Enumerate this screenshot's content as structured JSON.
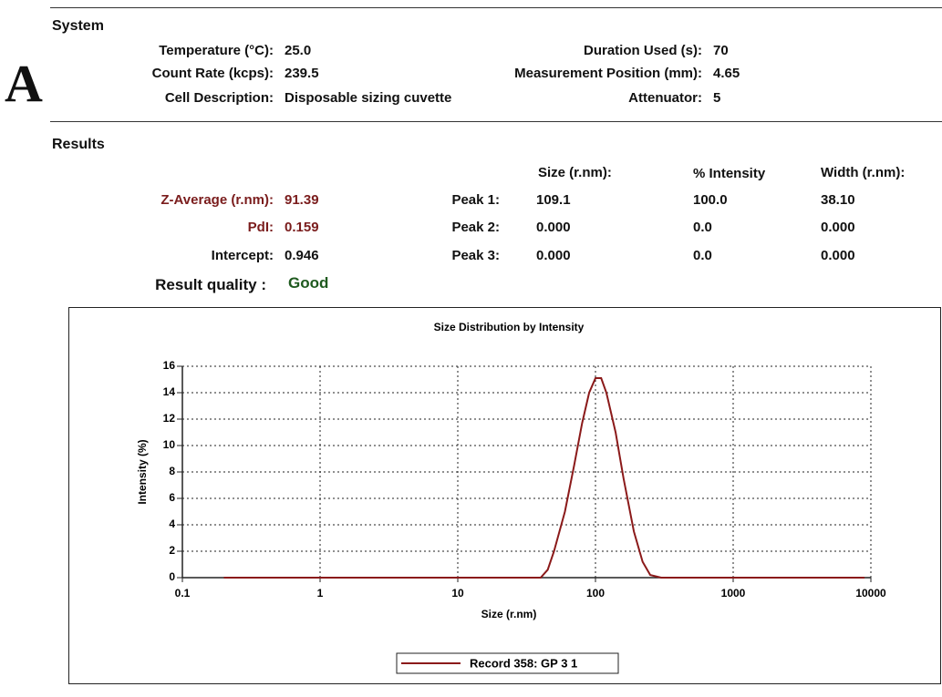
{
  "letter": "A",
  "system": {
    "title": "System",
    "left": [
      {
        "label": "Temperature (°C):",
        "value": "25.0"
      },
      {
        "label": "Count Rate (kcps):",
        "value": "239.5"
      },
      {
        "label": "Cell Description:",
        "value": "Disposable sizing cuvette"
      }
    ],
    "right": [
      {
        "label": "Duration Used (s):",
        "value": "70"
      },
      {
        "label": "Measurement Position (mm):",
        "value": "4.65"
      },
      {
        "label": "Attenuator:",
        "value": "5"
      }
    ]
  },
  "results": {
    "title": "Results",
    "left": [
      {
        "label": "Z-Average (r.nm):",
        "value": "91.39"
      },
      {
        "label": "PdI:",
        "value": "0.159"
      },
      {
        "label": "Intercept:",
        "value": "0.946"
      }
    ],
    "quality": {
      "label": "Result quality :",
      "value": "Good"
    },
    "peaks": {
      "headers": [
        "Size (r.nm):",
        "% Intensity",
        "Width (r.nm):"
      ],
      "rows": [
        [
          "Peak 1:",
          "109.1",
          "100.0",
          "38.10"
        ],
        [
          "Peak 2:",
          "0.000",
          "0.0",
          "0.000"
        ],
        [
          "Peak 3:",
          "0.000",
          "0.0",
          "0.000"
        ]
      ]
    }
  },
  "chart_data": {
    "type": "line",
    "title": "Size Distribution by Intensity",
    "x_label": "Size (r.nm)",
    "y_label": "Intensity (%)",
    "log_x": true,
    "grid": true,
    "xlim": [
      0.1,
      10000
    ],
    "xticks": [
      0.1,
      1,
      10,
      100,
      1000,
      10000
    ],
    "ylim": [
      0,
      16
    ],
    "yticks": [
      0,
      2,
      4,
      6,
      8,
      10,
      12,
      14,
      16
    ],
    "x": [
      0.2,
      0.3,
      0.5,
      0.7,
      1,
      2,
      3,
      5,
      7,
      10,
      20,
      30,
      40,
      45,
      50,
      60,
      70,
      80,
      90,
      100,
      110,
      120,
      140,
      160,
      190,
      220,
      250,
      300,
      500,
      1000,
      2000,
      5000,
      9000
    ],
    "series": [
      {
        "name": "Record 358: GP 3 1",
        "color": "#8b1a1a",
        "values": [
          0,
          0,
          0,
          0,
          0,
          0,
          0,
          0,
          0,
          0,
          0,
          0,
          0,
          0.6,
          2,
          5,
          8.5,
          11.7,
          14,
          15.1,
          15.1,
          14,
          11,
          7.5,
          3.5,
          1.2,
          0.2,
          0,
          0,
          0,
          0,
          0,
          0
        ]
      }
    ]
  }
}
